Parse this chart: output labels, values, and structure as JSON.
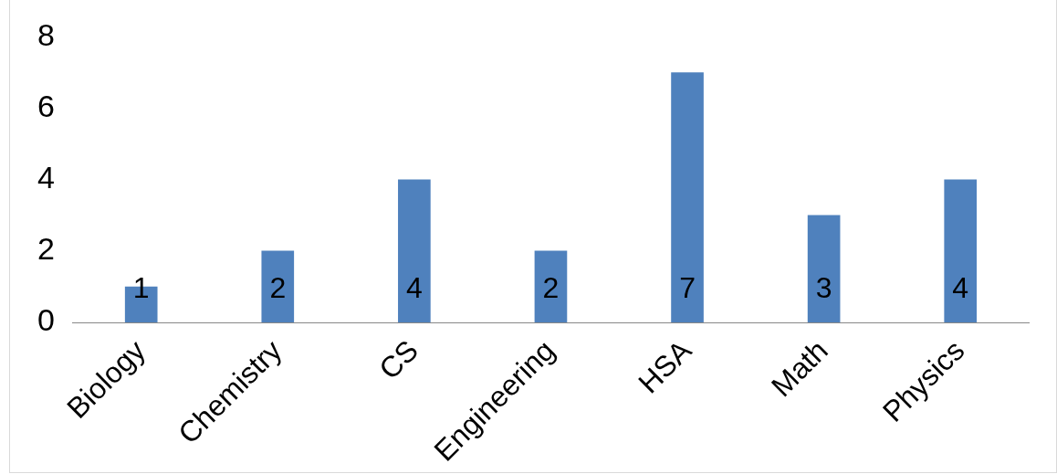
{
  "chart_data": {
    "type": "bar",
    "categories": [
      "Biology",
      "Chemistry",
      "CS",
      "Engineering",
      "HSA",
      "Math",
      "Physics"
    ],
    "values": [
      1,
      2,
      4,
      2,
      7,
      3,
      4
    ],
    "color": "#4f81bd",
    "ylim": [
      0,
      8
    ],
    "yticks": [
      0,
      2,
      4,
      6,
      8
    ],
    "grid": false,
    "legend": false,
    "data_labels": true
  }
}
